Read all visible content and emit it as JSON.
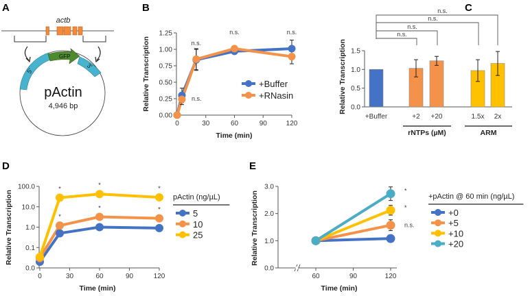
{
  "panel_labels": {
    "a": "A",
    "b": "B",
    "c": "C",
    "d": "D",
    "e": "E"
  },
  "diagram": {
    "gene": "actb",
    "plasmid": "pActin",
    "size": "4,946 bp",
    "insert": "GFP",
    "five_prime": "5'",
    "three_prime": "3'",
    "colors": {
      "exon": "#F08A3C",
      "utr": "#48B3CE",
      "gfp": "#4E8A2E"
    }
  },
  "chart_data": [
    {
      "panel": "B",
      "type": "line",
      "xlabel": "Time (min)",
      "ylabel": "Relative Transcription",
      "xlim": [
        0,
        120
      ],
      "ylim": [
        0,
        1.25
      ],
      "xticks": [
        0,
        30,
        60,
        90,
        120
      ],
      "yticks": [
        0,
        0.25,
        0.5,
        0.75,
        1.0,
        1.25
      ],
      "ytick_labels": [
        "0.00",
        "0.25",
        "0.50",
        "0.75",
        "1.00",
        "1.25"
      ],
      "legend": "right",
      "series": [
        {
          "name": "+Buffer",
          "color": "#4472C4",
          "x": [
            0,
            5,
            20,
            60,
            120
          ],
          "y": [
            0,
            0.3,
            0.84,
            0.97,
            1.01
          ],
          "err": [
            0,
            0.11,
            0.16,
            0.02,
            0.13
          ]
        },
        {
          "name": "+RNasin",
          "color": "#F4924A",
          "x": [
            0,
            5,
            20,
            60,
            120
          ],
          "y": [
            0,
            0.24,
            0.85,
            1.01,
            0.89
          ],
          "err": [
            0,
            0.08,
            0.16,
            0.02,
            0.11
          ]
        }
      ],
      "annotations": [
        {
          "x": 5,
          "text": "n.s.",
          "placement": "right"
        },
        {
          "x": 20,
          "text": "n.s.",
          "placement": "above"
        },
        {
          "x": 60,
          "text": "n.s.",
          "placement": "top"
        },
        {
          "x": 120,
          "text": "n.s.",
          "placement": "top"
        }
      ]
    },
    {
      "panel": "C",
      "type": "bar",
      "ylabel": "Relative Transcription",
      "ylim": [
        0,
        1.5
      ],
      "yticks": [
        0,
        0.5,
        1.0,
        1.5
      ],
      "ytick_labels": [
        "0.0",
        "0.5",
        "1.0",
        "1.5"
      ],
      "categories": [
        "+Buffer",
        "+2",
        "+20",
        "1.5x",
        "2x"
      ],
      "values": [
        1.0,
        1.03,
        1.23,
        0.97,
        1.16
      ],
      "errors": [
        0.0,
        0.23,
        0.12,
        0.29,
        0.32
      ],
      "colors": [
        "#4472C4",
        "#F4924A",
        "#F4924A",
        "#FFC000",
        "#FFC000"
      ],
      "groups": [
        {
          "label": "rNTPs (µM)",
          "members": [
            "+2",
            "+20"
          ]
        },
        {
          "label": "ARM",
          "members": [
            "1.5x",
            "2x"
          ]
        }
      ],
      "comparisons": [
        {
          "from": "+Buffer",
          "to": "+2",
          "text": "n.s."
        },
        {
          "from": "+Buffer",
          "to": "+20",
          "text": "n.s."
        },
        {
          "from": "+Buffer",
          "to": "1.5x",
          "text": "n.s."
        },
        {
          "from": "+Buffer",
          "to": "2x",
          "text": "n.s."
        }
      ]
    },
    {
      "panel": "D",
      "type": "line",
      "xlabel": "Time (min)",
      "ylabel": "Relative Transcription",
      "yscale": "log",
      "xlim": [
        0,
        120
      ],
      "ylim": [
        0.01,
        100
      ],
      "xticks": [
        0,
        30,
        60,
        90,
        120
      ],
      "yticks": [
        0.01,
        0.1,
        1,
        10,
        100
      ],
      "ytick_labels": [
        "0.0",
        "0.1",
        "1.0",
        "10.0",
        "100.0"
      ],
      "legend_title": "pActin (ng/µL)",
      "legend": "right",
      "series": [
        {
          "name": "5",
          "color": "#4472C4",
          "x": [
            0,
            20,
            60,
            120
          ],
          "y": [
            0.02,
            0.5,
            1.0,
            0.9
          ]
        },
        {
          "name": "10",
          "color": "#F4924A",
          "x": [
            0,
            20,
            60,
            120
          ],
          "y": [
            0.03,
            1.2,
            3.2,
            2.7
          ]
        },
        {
          "name": "25",
          "color": "#FFC000",
          "x": [
            0,
            20,
            60,
            120
          ],
          "y": [
            0.035,
            28,
            42,
            29
          ]
        }
      ],
      "annotations": [
        {
          "x": 20,
          "series": "25",
          "text": "*"
        },
        {
          "x": 20,
          "series": "10",
          "text": "*"
        },
        {
          "x": 60,
          "series": "25",
          "text": "*"
        },
        {
          "x": 60,
          "series": "10",
          "text": "*"
        },
        {
          "x": 120,
          "series": "25",
          "text": "*"
        },
        {
          "x": 120,
          "series": "10",
          "text": "*"
        }
      ]
    },
    {
      "panel": "E",
      "type": "line",
      "xlabel": "Time (min)",
      "ylabel": "Relative Transcription",
      "xlim": [
        60,
        120
      ],
      "ylim": [
        0,
        3.0
      ],
      "axis_break": true,
      "xticks": [
        60,
        90,
        120
      ],
      "yticks": [
        0,
        1.0,
        2.0,
        3.0
      ],
      "ytick_labels": [
        "0.0",
        "1.0",
        "2.0",
        "3.0"
      ],
      "legend_title": "+pActin @ 60 min (ng/µL)",
      "legend": "right",
      "series": [
        {
          "name": "+0",
          "color": "#4472C4",
          "x": [
            60,
            120
          ],
          "y": [
            1.0,
            1.08
          ],
          "err": [
            0,
            0.05
          ]
        },
        {
          "name": "+5",
          "color": "#F4924A",
          "x": [
            60,
            120
          ],
          "y": [
            1.0,
            1.57
          ],
          "err": [
            0,
            0.2
          ]
        },
        {
          "name": "+10",
          "color": "#FFC000",
          "x": [
            60,
            120
          ],
          "y": [
            1.0,
            2.12
          ],
          "err": [
            0,
            0.18
          ]
        },
        {
          "name": "+20",
          "color": "#4BACC6",
          "x": [
            60,
            120
          ],
          "y": [
            1.0,
            2.73
          ],
          "err": [
            0,
            0.25
          ]
        }
      ],
      "annotations": [
        {
          "x": 120,
          "series": "+20",
          "text": "*"
        },
        {
          "x": 120,
          "series": "+10",
          "text": "*"
        },
        {
          "x": 120,
          "series": "+5",
          "text": "n.s."
        }
      ]
    }
  ]
}
